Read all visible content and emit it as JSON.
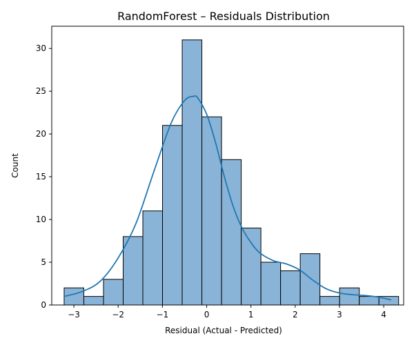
{
  "chart_data": {
    "type": "bar",
    "title": "RandomForest – Residuals Distribution",
    "xlabel": "Residual (Actual - Predicted)",
    "ylabel": "Count",
    "xlim": [
      -3.5,
      4.45
    ],
    "ylim": [
      0,
      32.6
    ],
    "x_ticks": [
      -3,
      -2,
      -1,
      0,
      1,
      2,
      3,
      4
    ],
    "y_ticks": [
      0,
      5,
      10,
      15,
      20,
      25,
      30
    ],
    "bin_start": -3.22,
    "bin_width": 0.4445,
    "values": [
      2,
      1,
      3,
      8,
      11,
      21,
      31,
      22,
      17,
      9,
      5,
      4,
      6,
      1,
      2,
      1,
      1
    ],
    "kde": {
      "x": [
        -3.22,
        -2.8,
        -2.4,
        -2.0,
        -1.6,
        -1.2,
        -0.8,
        -0.5,
        -0.3,
        -0.2,
        0.0,
        0.2,
        0.4,
        0.6,
        0.8,
        1.0,
        1.2,
        1.5,
        1.8,
        2.1,
        2.4,
        2.7,
        3.0,
        3.3,
        3.6,
        3.9,
        4.17
      ],
      "y": [
        1.0,
        1.6,
        2.8,
        5.5,
        9.5,
        15.5,
        21.3,
        23.9,
        24.4,
        24.2,
        22.3,
        19.0,
        15.0,
        11.5,
        9.0,
        7.3,
        6.1,
        5.2,
        4.8,
        4.1,
        2.9,
        1.9,
        1.4,
        1.2,
        1.1,
        0.9,
        0.6
      ]
    },
    "grid": false,
    "colors": {
      "bar_fill": "#8ab4d7",
      "bar_edge": "#000000",
      "kde_line": "#1f77b4"
    }
  }
}
